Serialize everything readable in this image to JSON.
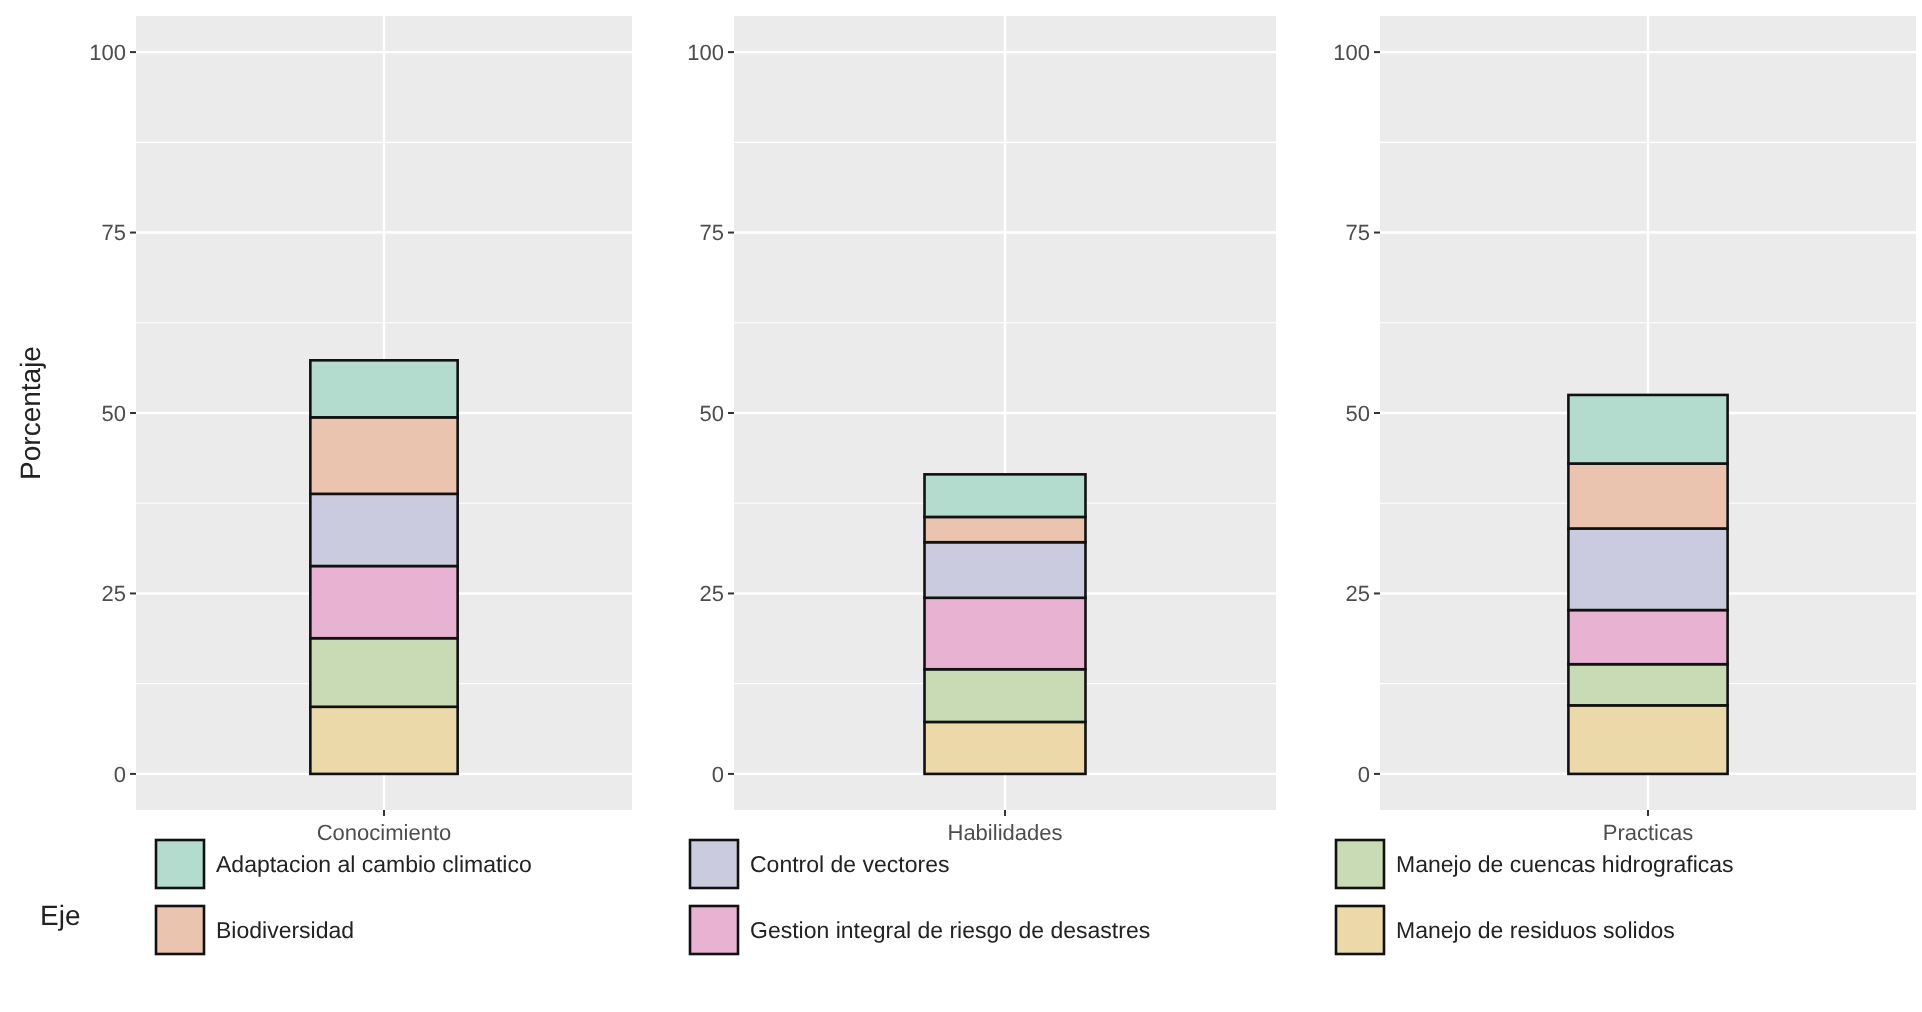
{
  "chart_data": [
    {
      "type": "bar",
      "stacked": true,
      "ylabel": "Porcentaje",
      "legend": "bottom",
      "legend_title": "Eje",
      "grid": true,
      "categories": [
        "Conocimiento"
      ],
      "ylim": [
        -5,
        105
      ],
      "yticks": [
        0,
        25,
        50,
        75,
        100
      ],
      "series": [
        {
          "name": "Manejo de residuos solidos",
          "color": "#ecd9aa",
          "values": [
            9.3
          ]
        },
        {
          "name": "Manejo de cuencas hidrograficas",
          "color": "#c9dbb5",
          "values": [
            9.5
          ]
        },
        {
          "name": "Gestion integral de riesgo de desastres",
          "color": "#e8b3d2",
          "values": [
            10.0
          ]
        },
        {
          "name": "Control de vectores",
          "color": "#cbcbdf",
          "values": [
            10.0
          ]
        },
        {
          "name": "Biodiversidad",
          "color": "#eac4ae",
          "values": [
            10.6
          ]
        },
        {
          "name": "Adaptacion al cambio climatico",
          "color": "#b3dccf",
          "values": [
            7.9
          ]
        }
      ]
    },
    {
      "type": "bar",
      "stacked": true,
      "grid": true,
      "categories": [
        "Habilidades"
      ],
      "ylim": [
        -5,
        105
      ],
      "yticks": [
        0,
        25,
        50,
        75,
        100
      ],
      "series": [
        {
          "color": "#ecd9aa",
          "values": [
            7.2
          ]
        },
        {
          "color": "#c9dbb5",
          "values": [
            7.3
          ]
        },
        {
          "color": "#e8b3d2",
          "values": [
            9.9
          ]
        },
        {
          "color": "#cbcbdf",
          "values": [
            7.7
          ]
        },
        {
          "color": "#eac4ae",
          "values": [
            3.5
          ]
        },
        {
          "color": "#b3dccf",
          "values": [
            5.9
          ]
        }
      ]
    },
    {
      "type": "bar",
      "stacked": true,
      "grid": true,
      "categories": [
        "Practicas"
      ],
      "ylim": [
        -5,
        105
      ],
      "yticks": [
        0,
        25,
        50,
        75,
        100
      ],
      "series": [
        {
          "color": "#ecd9aa",
          "values": [
            9.5
          ]
        },
        {
          "color": "#c9dbb5",
          "values": [
            5.7
          ]
        },
        {
          "color": "#e8b3d2",
          "values": [
            7.5
          ]
        },
        {
          "color": "#cbcbdf",
          "values": [
            11.3
          ]
        },
        {
          "color": "#eac4ae",
          "values": [
            9.0
          ]
        },
        {
          "color": "#b3dccf",
          "values": [
            9.5
          ]
        }
      ]
    }
  ]
}
